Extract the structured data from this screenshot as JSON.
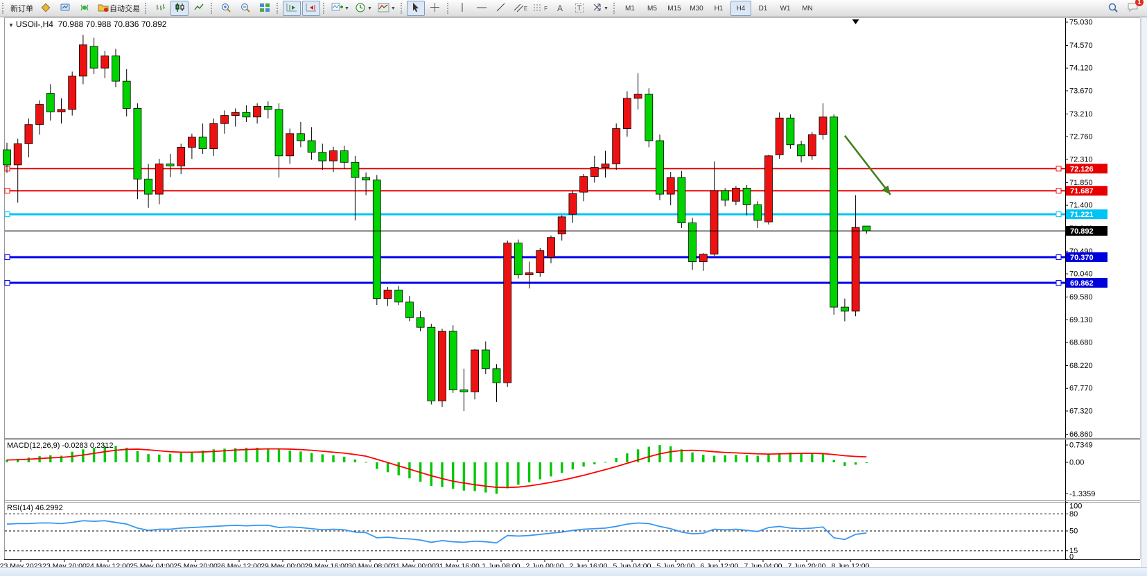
{
  "toolbar": {
    "new_order": "新订单",
    "autotrade": "自动交易",
    "timeframes": [
      "M1",
      "M5",
      "M15",
      "M30",
      "H1",
      "H4",
      "D1",
      "W1",
      "MN"
    ],
    "active_timeframe": "H4",
    "letters": {
      "channel": "E",
      "fibo": "F",
      "text": "A",
      "label": "T"
    },
    "chat_badge": "1"
  },
  "chart": {
    "caret": "▼",
    "symbol_header": "USOil-,H4",
    "ohlc": {
      "open": "70.988",
      "high": "70.988",
      "low": "70.836",
      "close": "70.892"
    },
    "macd_label": "MACD(12,26,9)",
    "macd_values": "-0.0283 0.2312",
    "rsi_label": "RSI(14)",
    "rsi_value": "46.2992",
    "colors": {
      "bull": "#ee1111",
      "bear": "#00d300",
      "wick": "#000000",
      "macd_hist": "#00c800",
      "macd_signal": "#ff0000",
      "rsi_line": "#3a96f0",
      "axis_text": "#000000",
      "arrow": "#44801f",
      "badge_red": "#e80000",
      "badge_cyan": "#00c4f5",
      "badge_blue": "#0000dd",
      "badge_black": "#000000"
    }
  },
  "chart_data": [
    {
      "type": "candlestick",
      "title": "USOil H4",
      "ylabel": "price",
      "ylim": [
        66.86,
        75.03
      ],
      "y_ticks": [
        "75.030",
        "74.570",
        "74.120",
        "73.670",
        "73.210",
        "72.760",
        "72.310",
        "71.850",
        "71.400",
        "70.940",
        "70.490",
        "70.040",
        "69.580",
        "69.130",
        "68.680",
        "68.220",
        "67.770",
        "67.320",
        "66.860"
      ],
      "x_labels": [
        "23 May 2023",
        "23 May 20:00",
        "24 May 12:00",
        "25 May 04:00",
        "25 May 20:00",
        "26 May 12:00",
        "29 May 00:00",
        "29 May 16:00",
        "30 May 08:00",
        "31 May 00:00",
        "31 May 16:00",
        "1 Jun 08:00",
        "2 Jun 00:00",
        "2 Jun 16:00",
        "5 Jun 04:00",
        "5 Jun 20:00",
        "6 Jun 12:00",
        "7 Jun 04:00",
        "7 Jun 20:00",
        "8 Jun 12:00"
      ],
      "candles": [
        [
          72.5,
          72.64,
          72.04,
          72.2
        ],
        [
          72.2,
          72.72,
          71.45,
          72.62
        ],
        [
          72.62,
          73.12,
          72.35,
          73.0
        ],
        [
          73.0,
          73.48,
          72.8,
          73.4
        ],
        [
          73.62,
          73.8,
          73.08,
          73.25
        ],
        [
          73.25,
          73.52,
          73.02,
          73.3
        ],
        [
          73.3,
          74.05,
          73.18,
          73.96
        ],
        [
          73.96,
          74.78,
          73.8,
          74.58
        ],
        [
          74.55,
          74.72,
          74.0,
          74.12
        ],
        [
          74.12,
          74.46,
          73.92,
          74.36
        ],
        [
          74.36,
          74.5,
          73.74,
          73.86
        ],
        [
          73.86,
          74.1,
          73.16,
          73.32
        ],
        [
          73.32,
          73.42,
          71.52,
          71.92
        ],
        [
          71.92,
          72.22,
          71.35,
          71.62
        ],
        [
          71.62,
          72.32,
          71.42,
          72.22
        ],
        [
          72.22,
          72.42,
          71.96,
          72.18
        ],
        [
          72.18,
          72.62,
          72.02,
          72.55
        ],
        [
          72.55,
          72.82,
          72.32,
          72.75
        ],
        [
          72.75,
          73.02,
          72.42,
          72.52
        ],
        [
          72.52,
          73.12,
          72.38,
          73.02
        ],
        [
          73.02,
          73.28,
          72.82,
          73.18
        ],
        [
          73.18,
          73.32,
          72.96,
          73.24
        ],
        [
          73.24,
          73.38,
          73.05,
          73.15
        ],
        [
          73.15,
          73.42,
          73.02,
          73.36
        ],
        [
          73.36,
          73.46,
          73.12,
          73.3
        ],
        [
          73.3,
          73.42,
          71.95,
          72.38
        ],
        [
          72.38,
          72.92,
          72.22,
          72.82
        ],
        [
          72.82,
          73.05,
          72.55,
          72.68
        ],
        [
          72.68,
          72.95,
          72.3,
          72.45
        ],
        [
          72.45,
          72.62,
          72.1,
          72.28
        ],
        [
          72.28,
          72.56,
          72.06,
          72.48
        ],
        [
          72.48,
          72.58,
          72.12,
          72.25
        ],
        [
          72.25,
          72.38,
          71.1,
          71.95
        ],
        [
          71.95,
          72.05,
          71.6,
          71.9
        ],
        [
          71.9,
          72.0,
          69.42,
          69.55
        ],
        [
          69.55,
          69.78,
          69.4,
          69.72
        ],
        [
          69.72,
          69.8,
          69.42,
          69.48
        ],
        [
          69.48,
          69.6,
          69.1,
          69.17
        ],
        [
          69.17,
          69.3,
          68.9,
          68.98
        ],
        [
          68.98,
          69.05,
          67.45,
          67.52
        ],
        [
          67.52,
          68.95,
          67.4,
          68.9
        ],
        [
          68.9,
          69.02,
          67.68,
          67.74
        ],
        [
          67.74,
          68.16,
          67.32,
          67.7
        ],
        [
          67.7,
          68.55,
          67.55,
          68.53
        ],
        [
          68.53,
          68.7,
          68.05,
          68.16
        ],
        [
          68.16,
          68.25,
          67.5,
          67.88
        ],
        [
          67.88,
          70.7,
          67.8,
          70.65
        ],
        [
          70.65,
          70.72,
          69.95,
          70.02
        ],
        [
          70.02,
          70.28,
          69.75,
          70.06
        ],
        [
          70.06,
          70.55,
          69.98,
          70.5
        ],
        [
          70.37,
          70.8,
          70.25,
          70.76
        ],
        [
          70.83,
          71.2,
          70.7,
          71.17
        ],
        [
          71.22,
          71.68,
          71.05,
          71.63
        ],
        [
          71.66,
          72.02,
          71.48,
          71.97
        ],
        [
          71.97,
          72.38,
          71.85,
          72.15
        ],
        [
          72.15,
          72.48,
          71.95,
          72.22
        ],
        [
          72.22,
          73.02,
          72.1,
          72.92
        ],
        [
          72.92,
          73.66,
          72.76,
          73.52
        ],
        [
          73.52,
          74.02,
          73.3,
          73.6
        ],
        [
          73.6,
          73.72,
          72.55,
          72.68
        ],
        [
          72.68,
          72.8,
          71.5,
          71.62
        ],
        [
          71.62,
          72.06,
          71.4,
          71.95
        ],
        [
          71.95,
          72.08,
          70.95,
          71.05
        ],
        [
          71.05,
          71.15,
          70.12,
          70.28
        ],
        [
          70.28,
          70.45,
          70.1,
          70.43
        ],
        [
          70.43,
          72.27,
          70.4,
          71.69
        ],
        [
          71.69,
          71.74,
          71.38,
          71.5
        ],
        [
          71.48,
          71.78,
          71.4,
          71.74
        ],
        [
          71.74,
          71.8,
          71.2,
          71.41
        ],
        [
          71.41,
          71.48,
          70.95,
          71.1
        ],
        [
          71.07,
          72.4,
          71.02,
          72.38
        ],
        [
          72.4,
          73.24,
          72.32,
          73.13
        ],
        [
          73.13,
          73.2,
          72.52,
          72.6
        ],
        [
          72.6,
          72.68,
          72.25,
          72.38
        ],
        [
          72.38,
          72.85,
          72.3,
          72.8
        ],
        [
          72.8,
          73.42,
          72.7,
          73.15
        ],
        [
          73.15,
          73.2,
          69.23,
          69.38
        ],
        [
          69.38,
          69.55,
          69.1,
          69.3
        ],
        [
          69.3,
          71.6,
          69.2,
          70.96
        ],
        [
          70.988,
          70.988,
          70.836,
          70.892
        ]
      ],
      "hlines": [
        {
          "price": 72.126,
          "color": "#f00000",
          "width": 2,
          "badge": "72.126",
          "badge_color": "#e80000"
        },
        {
          "price": 71.687,
          "color": "#f00000",
          "width": 2,
          "badge": "71.687",
          "badge_color": "#e80000"
        },
        {
          "price": 71.221,
          "color": "#00c4f5",
          "width": 3,
          "badge": "71.221",
          "badge_color": "#00c4f5"
        },
        {
          "price": 70.37,
          "color": "#0000ee",
          "width": 3,
          "badge": "70.370",
          "badge_color": "#0000dd"
        },
        {
          "price": 69.862,
          "color": "#0000ee",
          "width": 3,
          "badge": "69.862",
          "badge_color": "#0000dd"
        }
      ],
      "current_price": {
        "price": 70.892,
        "badge": "70.892"
      },
      "annotation_arrow": {
        "from": {
          "index": 77.0,
          "price": 72.78
        },
        "to": {
          "index": 81.2,
          "price": 71.61
        }
      },
      "shift_marker_index": 78
    },
    {
      "type": "bar",
      "title": "MACD(12,26,9)",
      "values_label": "-0.0283 0.2312",
      "y_ticks": [
        0.7349,
        0.0,
        -1.3359
      ],
      "y_tick_labels": [
        "0.7349",
        "0.00",
        "-1.3359"
      ],
      "hist": [
        0.12,
        0.15,
        0.2,
        0.26,
        0.3,
        0.28,
        0.45,
        0.55,
        0.62,
        0.68,
        0.7,
        0.62,
        0.48,
        0.35,
        0.33,
        0.36,
        0.4,
        0.45,
        0.5,
        0.55,
        0.58,
        0.6,
        0.62,
        0.62,
        0.6,
        0.55,
        0.5,
        0.46,
        0.4,
        0.34,
        0.3,
        0.24,
        0.12,
        0.02,
        -0.28,
        -0.42,
        -0.55,
        -0.68,
        -0.82,
        -1.0,
        -1.05,
        -1.12,
        -1.2,
        -1.22,
        -1.28,
        -1.336,
        -1.1,
        -0.95,
        -0.85,
        -0.72,
        -0.6,
        -0.45,
        -0.3,
        -0.18,
        -0.08,
        0.02,
        0.18,
        0.38,
        0.55,
        0.66,
        0.73,
        0.68,
        0.55,
        0.42,
        0.32,
        0.28,
        0.3,
        0.32,
        0.3,
        0.28,
        0.34,
        0.4,
        0.42,
        0.38,
        0.35,
        0.36,
        0.1,
        -0.15,
        -0.1,
        -0.0283
      ],
      "signal": [
        0.1,
        0.11,
        0.13,
        0.16,
        0.19,
        0.21,
        0.25,
        0.31,
        0.38,
        0.45,
        0.51,
        0.55,
        0.56,
        0.53,
        0.49,
        0.45,
        0.43,
        0.43,
        0.44,
        0.46,
        0.49,
        0.52,
        0.54,
        0.56,
        0.57,
        0.57,
        0.56,
        0.54,
        0.51,
        0.47,
        0.43,
        0.39,
        0.33,
        0.26,
        0.13,
        -0.01,
        -0.15,
        -0.29,
        -0.43,
        -0.57,
        -0.69,
        -0.8,
        -0.88,
        -0.95,
        -1.01,
        -1.06,
        -1.07,
        -1.05,
        -1.0,
        -0.93,
        -0.85,
        -0.76,
        -0.66,
        -0.55,
        -0.43,
        -0.31,
        -0.18,
        -0.04,
        0.1,
        0.24,
        0.36,
        0.45,
        0.5,
        0.51,
        0.49,
        0.45,
        0.42,
        0.4,
        0.38,
        0.36,
        0.35,
        0.36,
        0.37,
        0.38,
        0.38,
        0.37,
        0.33,
        0.28,
        0.25,
        0.2312
      ]
    },
    {
      "type": "line",
      "title": "RSI(14)",
      "current": 46.2992,
      "levels": [
        80,
        50,
        15
      ],
      "y_tick_labels": [
        "100",
        "80",
        "50",
        "15",
        "0"
      ],
      "y_tick_values": [
        100,
        80,
        50,
        15,
        0
      ],
      "ylim": [
        0,
        100
      ],
      "values": [
        62,
        63,
        63,
        64,
        64,
        63,
        65,
        68,
        67,
        68,
        65,
        62,
        55,
        51,
        53,
        53,
        55,
        56,
        57,
        58,
        59,
        60,
        59,
        60,
        60,
        56,
        57,
        56,
        54,
        52,
        53,
        52,
        48,
        47,
        38,
        39,
        37,
        36,
        34,
        30,
        33,
        31,
        30,
        32,
        31,
        29,
        42,
        41,
        42,
        44,
        46,
        48,
        51,
        53,
        54,
        55,
        58,
        62,
        64,
        63,
        58,
        54,
        48,
        45,
        46,
        53,
        52,
        53,
        51,
        49,
        56,
        58,
        55,
        54,
        55,
        57,
        38,
        35,
        44,
        46.3
      ]
    }
  ]
}
